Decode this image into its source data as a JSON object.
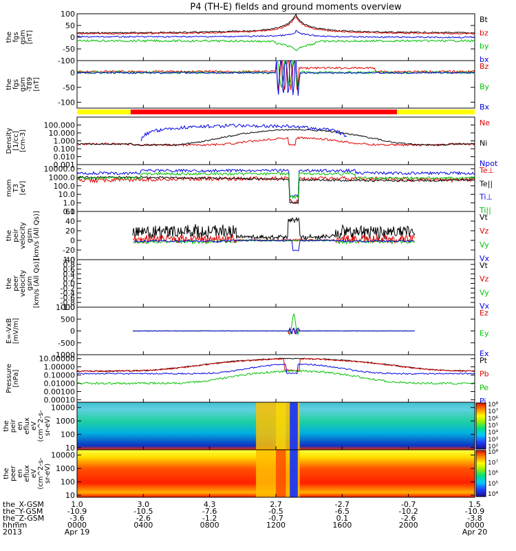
{
  "title": "P4 (TH-E) fields and ground moments overview",
  "chart_data": [
    {
      "type": "line",
      "ylabel_lines": [
        "the",
        "fgs",
        "gsm",
        "[nT]"
      ],
      "ylim": [
        -100,
        100
      ],
      "ytick_values": [
        100,
        50,
        0,
        -50,
        -100
      ],
      "ytick_labels": [
        "100",
        "50",
        "0",
        "-50",
        "-100"
      ],
      "scale": "linear",
      "series": [
        {
          "name": "Bt",
          "color": "#000000"
        },
        {
          "name": "bz",
          "color": "#e00000"
        },
        {
          "name": "by",
          "color": "#00c000"
        },
        {
          "name": "bx",
          "color": "#0000e0"
        }
      ]
    },
    {
      "type": "line",
      "ylabel_lines": [
        "the",
        "fgs",
        "gsm",
        "-T89",
        "[nT]"
      ],
      "ylim": [
        -120,
        40
      ],
      "ytick_values": [
        0,
        -50,
        -100
      ],
      "ytick_labels": [
        "0",
        "-50",
        "-100"
      ],
      "scale": "linear",
      "series": [
        {
          "name": "Bz",
          "color": "#e00000"
        },
        {
          "name": "By",
          "color": "#00c000"
        },
        {
          "name": "Bx",
          "color": "#0000e0"
        }
      ]
    },
    {
      "type": "line",
      "ylabel_lines": [
        "Density",
        "[1/cc]",
        "[cm-3]"
      ],
      "ylim": [
        0.001,
        1000
      ],
      "ytick_values": [
        100,
        10,
        1,
        0.1,
        0.01,
        0.001
      ],
      "ytick_labels": [
        "100.000",
        "10.000",
        "1.000",
        "0.100",
        "0.010",
        "0.001"
      ],
      "scale": "log",
      "series": [
        {
          "name": "Ne",
          "color": "#e00000"
        },
        {
          "name": "Ni",
          "color": "#000000"
        },
        {
          "name": "Npot",
          "color": "#0000e0"
        }
      ]
    },
    {
      "type": "line",
      "ylabel_lines": [
        "mom",
        "T3",
        "[eV]"
      ],
      "ylim": [
        0.1,
        30000
      ],
      "ytick_values": [
        10000,
        1000,
        100,
        10,
        1,
        0.1
      ],
      "ytick_labels": [
        "10000.0",
        "1000.0",
        "100.0",
        "10.0",
        "1.0",
        "0.1"
      ],
      "scale": "log",
      "series": [
        {
          "name": "Te⊥",
          "color": "#e00000"
        },
        {
          "name": "Te||",
          "color": "#000000"
        },
        {
          "name": "Ti⊥",
          "color": "#0000e0"
        },
        {
          "name": "Ti||",
          "color": "#00c000"
        }
      ]
    },
    {
      "type": "line",
      "ylabel_lines": [
        "the",
        "peir",
        "velocity",
        "gsm",
        "[km/s (All Qs)]"
      ],
      "ylim": [
        -40,
        60
      ],
      "ytick_values": [
        60,
        40,
        20,
        0,
        -20,
        -40
      ],
      "ytick_labels": [
        "60",
        "40",
        "20",
        "0",
        "-20",
        "-40"
      ],
      "scale": "linear",
      "series": [
        {
          "name": "Vt",
          "color": "#000000"
        },
        {
          "name": "Vz",
          "color": "#e00000"
        },
        {
          "name": "Vy",
          "color": "#00c000"
        },
        {
          "name": "Vx",
          "color": "#0000e0"
        }
      ]
    },
    {
      "type": "line",
      "ylabel_lines": [
        "the",
        "peer",
        "velocity",
        "gsm",
        "[km/s (All Qs)]"
      ],
      "ylim": [
        -1,
        1
      ],
      "ytick_values": [
        1,
        0.8,
        0.6,
        0.4,
        0.2,
        0,
        -0.2,
        -0.4,
        -0.6,
        -0.8,
        -1
      ],
      "ytick_labels": [
        "1.0",
        "0.8",
        "0.6",
        "0.4",
        "0.2",
        "0.0",
        "-0.2",
        "-0.4",
        "-0.6",
        "-0.8",
        "-1.0"
      ],
      "scale": "linear",
      "series": [
        {
          "name": "Vt",
          "color": "#000000"
        },
        {
          "name": "Vz",
          "color": "#e00000"
        },
        {
          "name": "Vy",
          "color": "#00c000"
        },
        {
          "name": "Vx",
          "color": "#0000e0"
        }
      ]
    },
    {
      "type": "line",
      "ylabel_lines": [
        "E=-VxB",
        "[mV/m]"
      ],
      "ylim": [
        -1000,
        1000
      ],
      "ytick_values": [
        1000,
        500,
        0,
        -500,
        -1000
      ],
      "ytick_labels": [
        "1000",
        "500",
        "0",
        "-500",
        "-1000"
      ],
      "scale": "linear",
      "series": [
        {
          "name": "Ez",
          "color": "#e00000"
        },
        {
          "name": "Ey",
          "color": "#00c000"
        },
        {
          "name": "Ex",
          "color": "#0000e0"
        }
      ]
    },
    {
      "type": "line",
      "ylabel_lines": [
        "Pressure",
        "[nPa]"
      ],
      "ylim": [
        5e-05,
        30
      ],
      "ytick_values": [
        10,
        1,
        0.1,
        0.01,
        0.001,
        0.0001
      ],
      "ytick_labels": [
        "10.00000",
        "1.00000",
        "0.10000",
        "0.01000",
        "0.00100",
        "0.00010"
      ],
      "scale": "log",
      "series": [
        {
          "name": "Pt",
          "color": "#000000"
        },
        {
          "name": "Pb",
          "color": "#e00000"
        },
        {
          "name": "Pe",
          "color": "#00c000"
        },
        {
          "name": "Pi",
          "color": "#0000e0"
        }
      ]
    },
    {
      "type": "heatmap",
      "ylabel_lines": [
        "the",
        "peir",
        "en",
        "eflux",
        "eV",
        "(cm^2-s-",
        "sr-eV)"
      ],
      "ylim": [
        7,
        25000
      ],
      "ytick_values": [
        10000,
        1000,
        100,
        10
      ],
      "ytick_labels": [
        "10000",
        "1000",
        "100",
        "10"
      ],
      "scale": "log",
      "colorbar_labels": [
        "10⁸",
        "10⁷",
        "10⁶",
        "10⁵",
        "10⁴",
        "10³",
        "10²"
      ]
    },
    {
      "type": "heatmap",
      "ylabel_lines": [
        "the",
        "peer",
        "en",
        "eflux",
        "eV",
        "(cm^2-s-",
        "sr-eV)"
      ],
      "ylim": [
        7,
        25000
      ],
      "ytick_values": [
        10000,
        1000,
        100,
        10
      ],
      "ytick_labels": [
        "10000",
        "1000",
        "100",
        "10"
      ],
      "scale": "log",
      "colorbar_labels": [
        "10⁸",
        "10⁷",
        "10⁶",
        "10⁵",
        "10⁴"
      ]
    }
  ],
  "bar_colors": {
    "outside": "#ffff00",
    "inside": "#ff0000"
  },
  "footer": {
    "row_labels": [
      "the_X-GSM",
      "the_Y-GSM",
      "the_Z-GSM",
      "hhmm",
      "2013"
    ],
    "columns": [
      {
        "values": [
          "1.0",
          "-10.9",
          "-3.6",
          "0000",
          "Apr 19"
        ]
      },
      {
        "values": [
          "3.0",
          "-10.5",
          "-2.6",
          "0400",
          ""
        ]
      },
      {
        "values": [
          "4.3",
          "-7.6",
          "-1.2",
          "0800",
          ""
        ]
      },
      {
        "values": [
          "2.7",
          "-0.5",
          "-0.7",
          "1200",
          ""
        ]
      },
      {
        "values": [
          "-2.7",
          "-6.5",
          "0.1",
          "1600",
          ""
        ]
      },
      {
        "values": [
          "-0.7",
          "-10.2",
          "-2.6",
          "2000",
          ""
        ]
      },
      {
        "values": [
          "1.5",
          "-10.9",
          "-3.8",
          "0000",
          "Apr 20"
        ]
      }
    ]
  }
}
